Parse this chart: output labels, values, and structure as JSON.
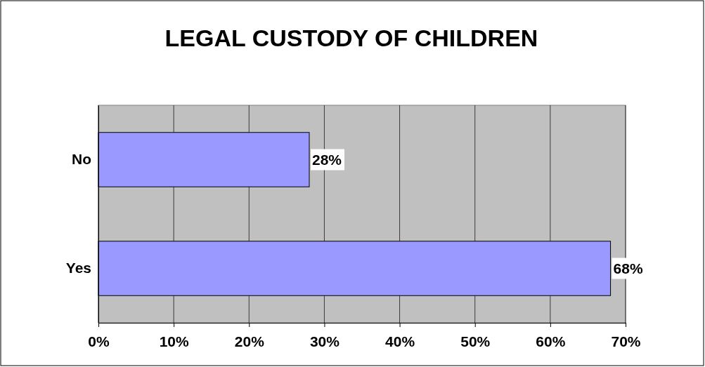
{
  "chart_data": {
    "type": "bar",
    "title": "LEGAL CUSTODY OF CHILDREN",
    "orientation": "horizontal",
    "categories": [
      "No",
      "Yes"
    ],
    "values": [
      28,
      68
    ],
    "color": "#9999ff",
    "value_labels": [
      "28%",
      "68%"
    ],
    "xlim": [
      0,
      70
    ],
    "xticks": [
      {
        "value": 0,
        "label": "0%"
      },
      {
        "value": 10,
        "label": "10%"
      },
      {
        "value": 20,
        "label": "20%"
      },
      {
        "value": 30,
        "label": "30%"
      },
      {
        "value": 40,
        "label": "40%"
      },
      {
        "value": 50,
        "label": "50%"
      },
      {
        "value": 60,
        "label": "60%"
      },
      {
        "value": 70,
        "label": "70%"
      }
    ],
    "grid": "x"
  }
}
